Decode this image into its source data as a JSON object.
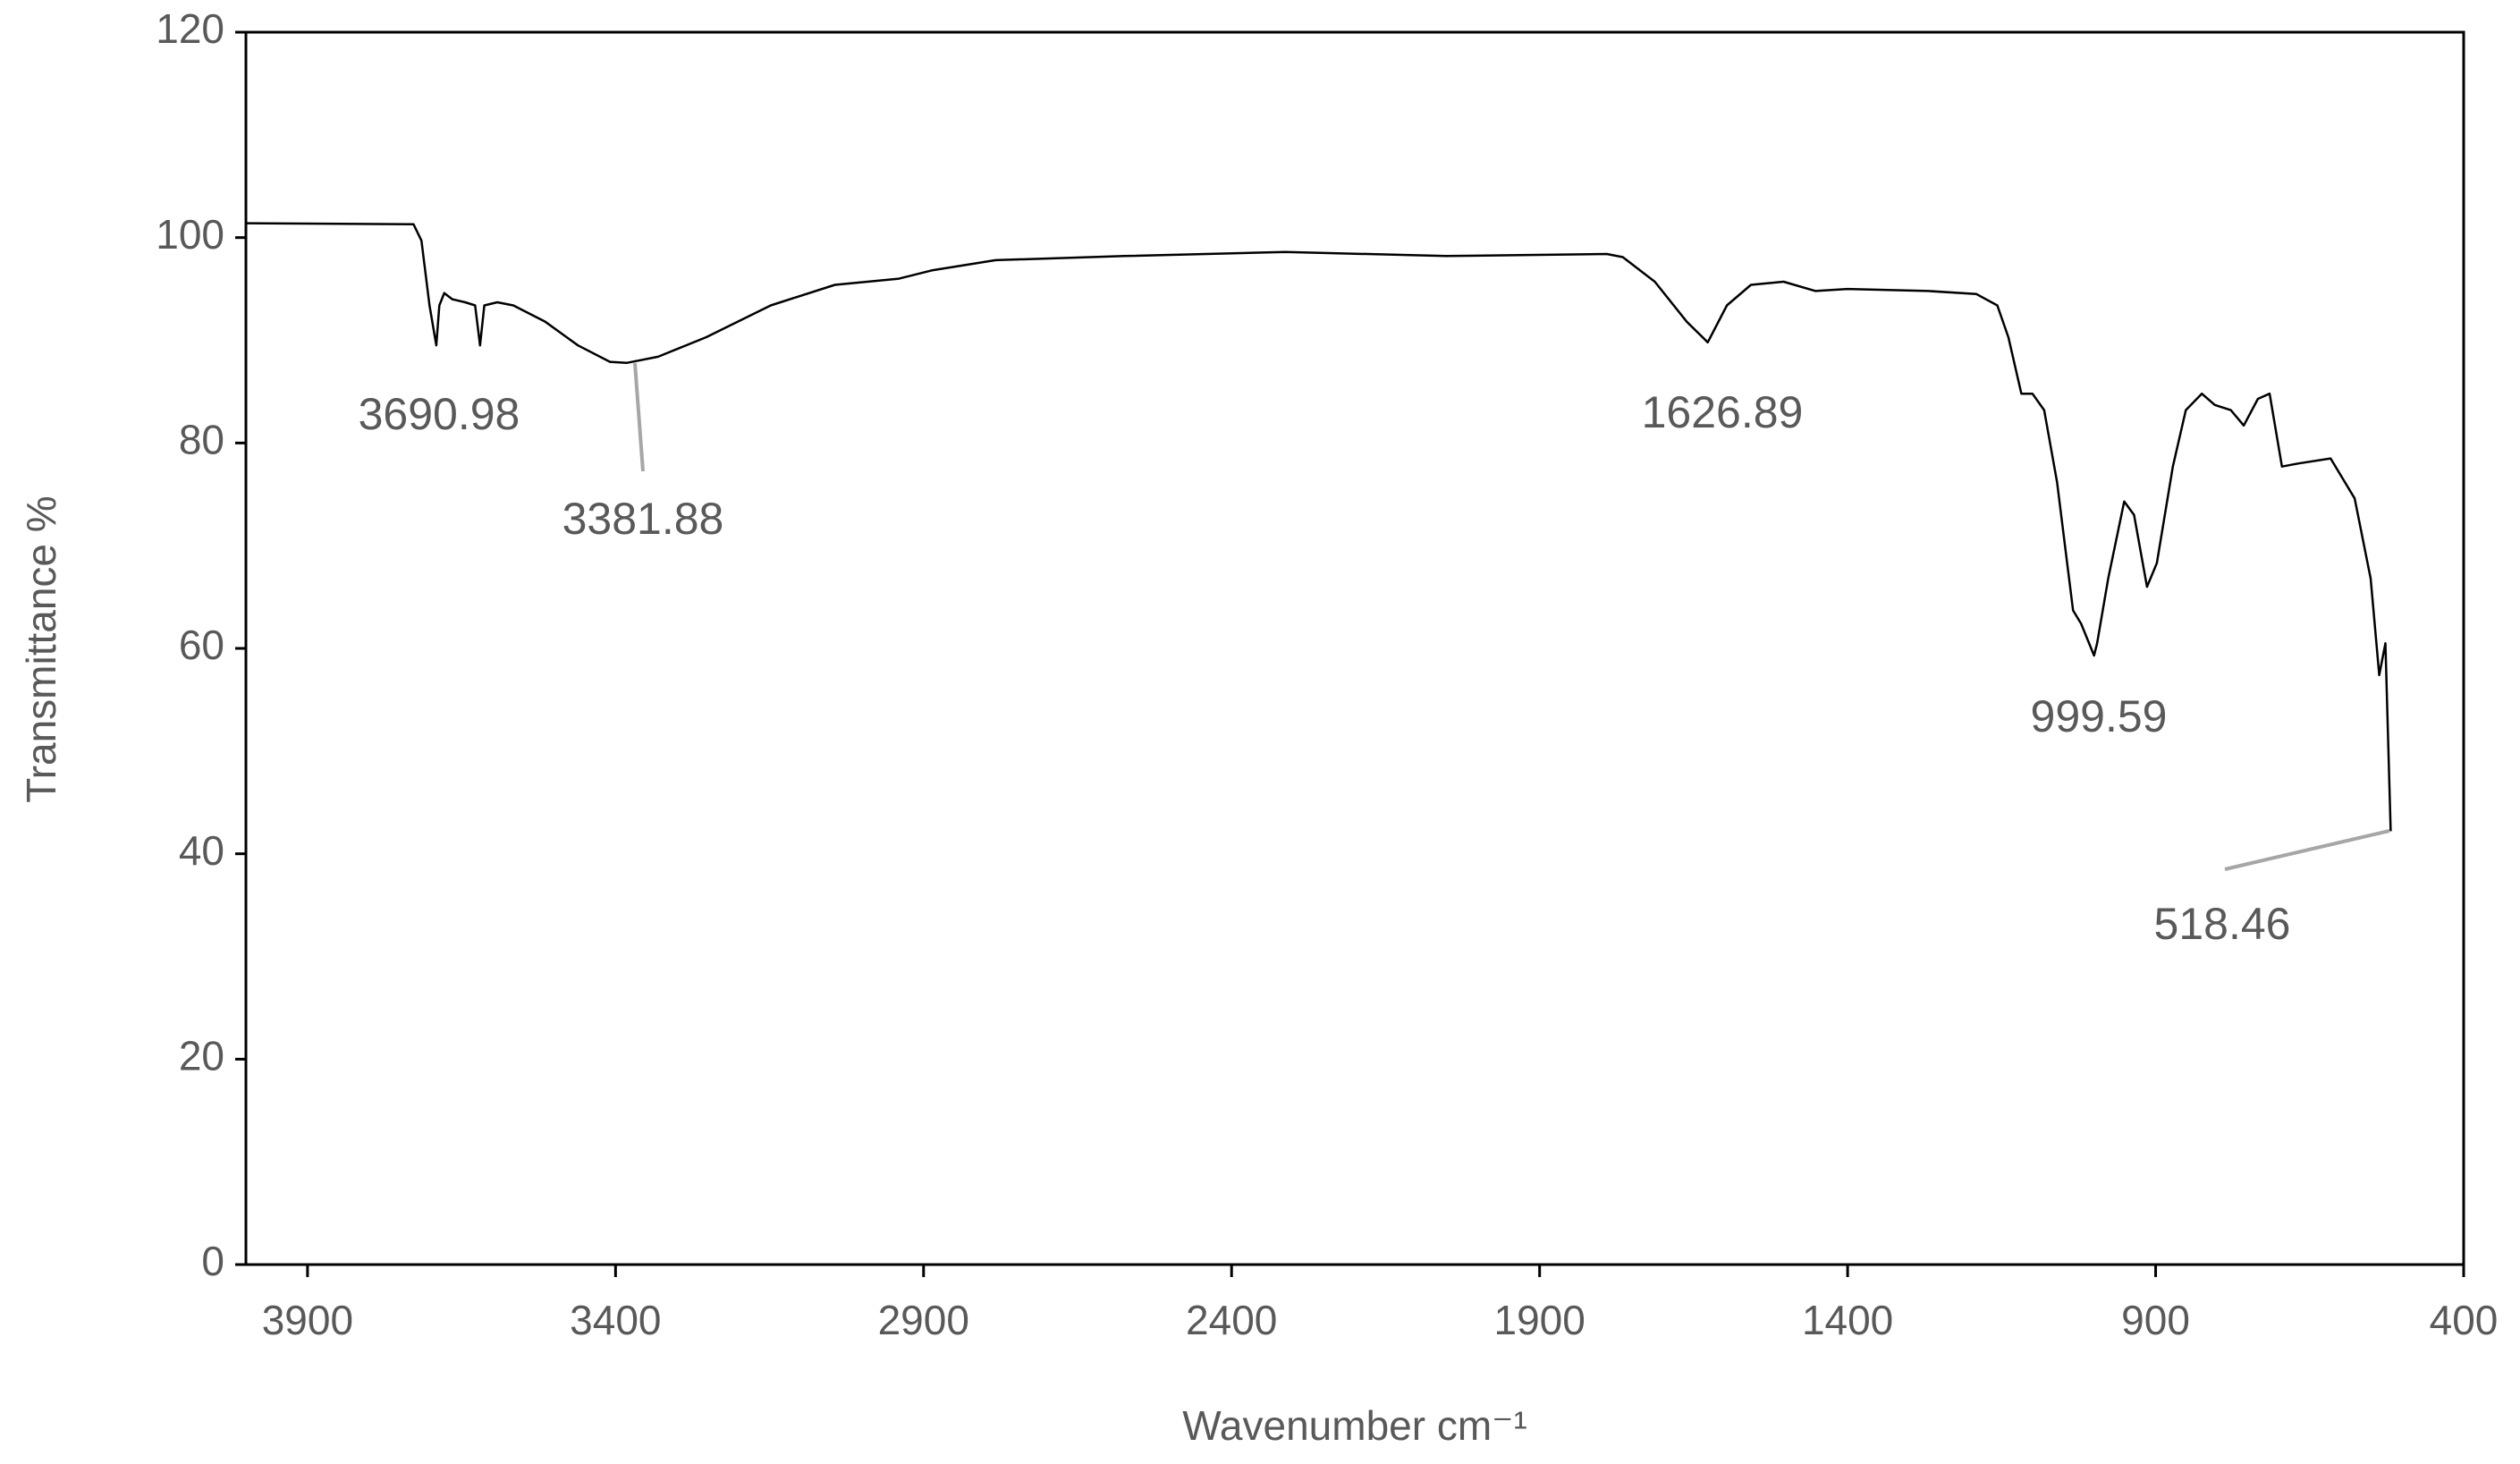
{
  "chart_data": {
    "type": "line",
    "xlabel": "Wavenumber cm⁻¹",
    "ylabel": "Transmittance %",
    "xlim": [
      4000,
      400
    ],
    "xticks": [
      3900,
      3400,
      2900,
      2400,
      1900,
      1400,
      900,
      400
    ],
    "ylim": [
      0,
      120
    ],
    "yticks": [
      0,
      20,
      40,
      60,
      80,
      100,
      120
    ],
    "series": [
      {
        "color": "#000000",
        "x": [
          4000,
          3728,
          3715,
          3702,
          3691,
          3686,
          3678,
          3665,
          3644,
          3628,
          3620,
          3613,
          3592,
          3566,
          3514,
          3461,
          3409,
          3382,
          3331,
          3253,
          3148,
          3044,
          2940,
          2887,
          2783,
          2574,
          2313,
          2052,
          1791,
          1765,
          1713,
          1661,
          1627,
          1596,
          1557,
          1504,
          1452,
          1400,
          1269,
          1191,
          1157,
          1139,
          1118,
          1100,
          1081,
          1060,
          1034,
          1021,
          1000,
          995,
          977,
          951,
          935,
          914,
          898,
          872,
          851,
          825,
          804,
          778,
          757,
          734,
          715,
          695,
          669,
          616,
          577,
          551,
          537,
          527,
          518.46
        ],
        "values": [
          101.4,
          101.3,
          99.7,
          93.4,
          89.5,
          93.4,
          94.6,
          94.0,
          93.7,
          93.4,
          89.5,
          93.4,
          93.7,
          93.4,
          91.8,
          89.5,
          87.9,
          87.8,
          88.4,
          90.3,
          93.4,
          95.4,
          96.0,
          96.8,
          97.8,
          98.2,
          98.6,
          98.2,
          98.4,
          98.1,
          95.7,
          91.8,
          89.8,
          93.4,
          95.4,
          95.7,
          94.8,
          95.0,
          94.8,
          94.5,
          93.4,
          90.3,
          84.8,
          84.8,
          83.2,
          76.2,
          63.7,
          62.4,
          59.3,
          60.5,
          66.8,
          74.3,
          73.0,
          66.0,
          68.3,
          77.7,
          83.2,
          84.8,
          83.7,
          83.2,
          81.7,
          84.3,
          84.8,
          77.7,
          78.0,
          78.5,
          74.6,
          66.8,
          57.4,
          60.5,
          42.2
        ]
      }
    ],
    "annotations": [
      "3690.98",
      "3381.88",
      "1626.89",
      "999.59",
      "518.46"
    ]
  }
}
